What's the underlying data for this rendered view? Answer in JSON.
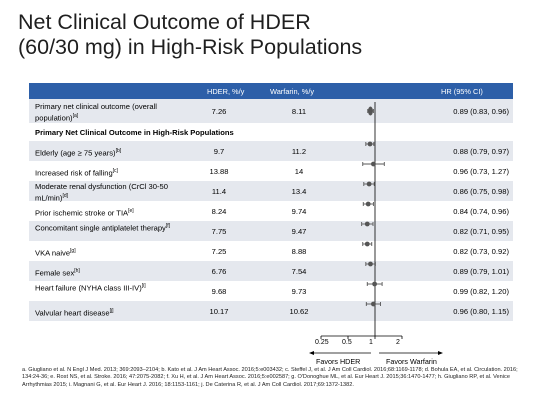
{
  "slide": {
    "title_line1": "Net Clinical Outcome of HDER",
    "title_line2": "(60/30 mg) in High-Risk Populations"
  },
  "table": {
    "headers": {
      "hder": "HDER, %/y",
      "warfarin": "Warfarin, %/y",
      "hr": "HR (95% CI)"
    },
    "primary": {
      "label": "Primary net clinical outcome (overall population)",
      "footnote": "[a]",
      "hder": "7.26",
      "warfarin": "8.11",
      "hr_text": "0.89 (0.83, 0.96)",
      "hr": 0.89,
      "lo": 0.83,
      "hi": 0.96
    },
    "section_title": "Primary Net Clinical Outcome in High-Risk Populations",
    "rows": [
      {
        "label": "Elderly (age ≥ 75 years)",
        "footnote": "[b]",
        "hder": "9.7",
        "warfarin": "11.2",
        "hr_text": "0.88 (0.79, 0.97)",
        "hr": 0.88,
        "lo": 0.79,
        "hi": 0.97
      },
      {
        "label": "Increased  risk of falling",
        "footnote": "[c]",
        "hder": "13.88",
        "warfarin": "14",
        "hr_text": "0.96 (0.73, 1.27)",
        "hr": 0.96,
        "lo": 0.73,
        "hi": 1.27
      },
      {
        "label": "Moderate renal dysfunction (CrCl 30-50 mL/min)",
        "footnote": "[d]",
        "hder": "11.4",
        "warfarin": "13.4",
        "hr_text": "0.86 (0.75, 0.98)",
        "hr": 0.86,
        "lo": 0.75,
        "hi": 0.98
      },
      {
        "label": "Prior ischemic stroke or TIA",
        "footnote": "[e]",
        "hder": "8.24",
        "warfarin": "9.74",
        "hr_text": "0.84 (0.74, 0.96)",
        "hr": 0.84,
        "lo": 0.74,
        "hi": 0.96
      },
      {
        "label": "Concomitant single antiplatelet therapy",
        "footnote": "[f]",
        "hder": "7.75",
        "warfarin": "9.47",
        "hr_text": "0.82 (0.71, 0.95)",
        "hr": 0.82,
        "lo": 0.71,
        "hi": 0.95
      },
      {
        "label": "VKA naive",
        "footnote": "[g]",
        "hder": "7.25",
        "warfarin": "8.88",
        "hr_text": "0.82 (0.73, 0.92)",
        "hr": 0.82,
        "lo": 0.73,
        "hi": 0.92
      },
      {
        "label": "Female sex",
        "footnote": "[h]",
        "hder": "6.76",
        "warfarin": "7.54",
        "hr_text": "0.89 (0.79, 1.01)",
        "hr": 0.89,
        "lo": 0.79,
        "hi": 1.01
      },
      {
        "label": "Heart failure (NYHA class III-IV)",
        "footnote": "[i]",
        "hder": "9.68",
        "warfarin": "9.73",
        "hr_text": "0.99 (0.82, 1.20)",
        "hr": 0.99,
        "lo": 0.82,
        "hi": 1.2
      },
      {
        "label": "Valvular heart disease",
        "footnote": "[j]",
        "hder": "10.17",
        "warfarin": "10.62",
        "hr_text": "0.96 (0.80, 1.15)",
        "hr": 0.96,
        "lo": 0.8,
        "hi": 1.15
      }
    ]
  },
  "axis": {
    "ticks": [
      {
        "value": 0.25,
        "label": "0.25"
      },
      {
        "value": 0.5,
        "label": "0.5"
      },
      {
        "value": 1,
        "label": "1"
      },
      {
        "value": 2,
        "label": "2"
      }
    ],
    "favors_left": "Favors HDER",
    "favors_right": "Favors  Warfarin"
  },
  "footnotes": [
    "a. Giugliano et al. N Engl J Med. 2013;  369:2093–2104;   b. Kato et al. J Am Heart Assoc. 2016;5:e003432;   c. Steffel J, et al. J Am Coll Cardiol. 2016;68:1169-1178;   d. Bohula EA, et al. Circulation. 2016;  134:24-36;  e. Rost NS, et al. Stroke. 2016;  47:2075-2082;  f. Xu H, et al. J Am Heart Assoc. 2016;5:e002587;  g. O'Donoghue ML, et al. Eur Heart J. 2015;36:1470-1477;   h. Giugliano RP, et al. Venice Arrhythmias 2015;  i. Magnani  G, et al. Eur Heart J. 2016;  18:1153-1161;   j. De Caterina R, et al. J Am Coll Cardiol. 2017;69:1372-1382."
  ],
  "colors": {
    "header_bg": "#2d5fa8",
    "alt_row": "#e5e8ee",
    "marker": "#555555"
  }
}
